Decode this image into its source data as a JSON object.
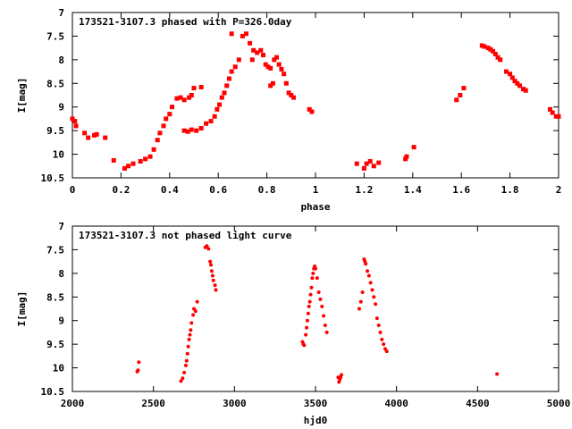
{
  "chart_data": [
    {
      "type": "scatter",
      "title": "173521-3107.3 phased with P=326.0day",
      "xlabel": "phase",
      "ylabel": "I[mag]",
      "xlim": [
        0,
        2
      ],
      "ylim": [
        10.5,
        7
      ],
      "y_inverted": true,
      "grid": false,
      "xticks": [
        0,
        0.2,
        0.4,
        0.6,
        0.8,
        1,
        1.2,
        1.4,
        1.6,
        1.8,
        2
      ],
      "xtick_labels": [
        "0",
        "0.2",
        "0.4",
        "0.6",
        "0.8",
        "1",
        "1.2",
        "1.4",
        "1.6",
        "1.8",
        "2"
      ],
      "yticks": [
        7,
        7.5,
        8,
        8.5,
        9,
        9.5,
        10,
        10.5
      ],
      "ytick_labels": [
        "7",
        "7.5",
        "8",
        "8.5",
        "9",
        "9.5",
        "10",
        "10.5"
      ],
      "series": [
        {
          "color": "#ff0000",
          "points": [
            [
              0.0,
              9.25
            ],
            [
              0.01,
              9.3
            ],
            [
              0.015,
              9.4
            ],
            [
              0.05,
              9.55
            ],
            [
              0.065,
              9.65
            ],
            [
              0.09,
              9.6
            ],
            [
              0.1,
              9.58
            ],
            [
              0.135,
              9.65
            ],
            [
              0.17,
              10.13
            ],
            [
              0.215,
              10.3
            ],
            [
              0.23,
              10.25
            ],
            [
              0.25,
              10.2
            ],
            [
              0.28,
              10.15
            ],
            [
              0.3,
              10.1
            ],
            [
              0.32,
              10.05
            ],
            [
              0.335,
              9.9
            ],
            [
              0.35,
              9.7
            ],
            [
              0.36,
              9.55
            ],
            [
              0.375,
              9.4
            ],
            [
              0.385,
              9.25
            ],
            [
              0.4,
              9.15
            ],
            [
              0.41,
              9.0
            ],
            [
              0.43,
              8.82
            ],
            [
              0.445,
              8.8
            ],
            [
              0.46,
              8.85
            ],
            [
              0.48,
              8.8
            ],
            [
              0.49,
              8.75
            ],
            [
              0.5,
              8.6
            ],
            [
              0.53,
              8.58
            ],
            [
              0.46,
              9.5
            ],
            [
              0.475,
              9.52
            ],
            [
              0.49,
              9.48
            ],
            [
              0.51,
              9.5
            ],
            [
              0.53,
              9.45
            ],
            [
              0.55,
              9.35
            ],
            [
              0.57,
              9.3
            ],
            [
              0.585,
              9.2
            ],
            [
              0.595,
              9.05
            ],
            [
              0.605,
              8.95
            ],
            [
              0.615,
              8.8
            ],
            [
              0.625,
              8.7
            ],
            [
              0.635,
              8.55
            ],
            [
              0.645,
              8.4
            ],
            [
              0.655,
              8.25
            ],
            [
              0.67,
              8.15
            ],
            [
              0.685,
              8.0
            ],
            [
              0.655,
              7.45
            ],
            [
              0.7,
              7.5
            ],
            [
              0.715,
              7.45
            ],
            [
              0.73,
              7.65
            ],
            [
              0.745,
              7.8
            ],
            [
              0.76,
              7.85
            ],
            [
              0.775,
              7.8
            ],
            [
              0.785,
              7.9
            ],
            [
              0.795,
              8.1
            ],
            [
              0.805,
              8.15
            ],
            [
              0.815,
              8.18
            ],
            [
              0.83,
              8.0
            ],
            [
              0.84,
              7.95
            ],
            [
              0.85,
              8.1
            ],
            [
              0.86,
              8.2
            ],
            [
              0.87,
              8.3
            ],
            [
              0.88,
              8.5
            ],
            [
              0.89,
              8.7
            ],
            [
              0.9,
              8.75
            ],
            [
              0.91,
              8.8
            ],
            [
              0.815,
              8.55
            ],
            [
              0.825,
              8.5
            ],
            [
              0.74,
              8.0
            ],
            [
              0.975,
              9.05
            ],
            [
              0.985,
              9.1
            ],
            [
              1.17,
              10.2
            ],
            [
              1.2,
              10.3
            ],
            [
              1.21,
              10.2
            ],
            [
              1.225,
              10.15
            ],
            [
              1.24,
              10.25
            ],
            [
              1.26,
              10.18
            ],
            [
              1.37,
              10.1
            ],
            [
              1.375,
              10.05
            ],
            [
              1.405,
              9.85
            ],
            [
              1.58,
              8.85
            ],
            [
              1.595,
              8.75
            ],
            [
              1.61,
              8.6
            ],
            [
              1.685,
              7.7
            ],
            [
              1.695,
              7.72
            ],
            [
              1.71,
              7.75
            ],
            [
              1.72,
              7.78
            ],
            [
              1.73,
              7.82
            ],
            [
              1.74,
              7.88
            ],
            [
              1.75,
              7.95
            ],
            [
              1.76,
              8.0
            ],
            [
              1.785,
              8.25
            ],
            [
              1.8,
              8.3
            ],
            [
              1.81,
              8.38
            ],
            [
              1.82,
              8.45
            ],
            [
              1.83,
              8.5
            ],
            [
              1.84,
              8.55
            ],
            [
              1.855,
              8.62
            ],
            [
              1.865,
              8.65
            ],
            [
              1.965,
              9.05
            ],
            [
              1.975,
              9.12
            ],
            [
              1.99,
              9.2
            ],
            [
              2.0,
              9.2
            ]
          ]
        }
      ]
    },
    {
      "type": "scatter",
      "title": "173521-3107.3 not phased light curve",
      "xlabel": "hjd0",
      "ylabel": "I[mag]",
      "xlim": [
        2000,
        5000
      ],
      "ylim": [
        10.5,
        7
      ],
      "y_inverted": true,
      "grid": false,
      "xticks": [
        2000,
        2500,
        3000,
        3500,
        4000,
        4500,
        5000
      ],
      "xtick_labels": [
        "2000",
        "2500",
        "3000",
        "3500",
        "4000",
        "4500",
        "5000"
      ],
      "yticks": [
        7,
        7.5,
        8,
        8.5,
        9,
        9.5,
        10,
        10.5
      ],
      "ytick_labels": [
        "7",
        "7.5",
        "8",
        "8.5",
        "9",
        "9.5",
        "10",
        "10.5"
      ],
      "series": [
        {
          "color": "#ff0000",
          "points": [
            [
              2400,
              10.08
            ],
            [
              2405,
              10.05
            ],
            [
              2410,
              9.88
            ],
            [
              2670,
              10.28
            ],
            [
              2680,
              10.22
            ],
            [
              2690,
              10.1
            ],
            [
              2700,
              9.95
            ],
            [
              2705,
              9.85
            ],
            [
              2710,
              9.7
            ],
            [
              2715,
              9.55
            ],
            [
              2720,
              9.4
            ],
            [
              2725,
              9.3
            ],
            [
              2730,
              9.2
            ],
            [
              2735,
              9.05
            ],
            [
              2745,
              8.88
            ],
            [
              2750,
              8.75
            ],
            [
              2760,
              8.8
            ],
            [
              2770,
              8.6
            ],
            [
              2820,
              7.45
            ],
            [
              2830,
              7.42
            ],
            [
              2840,
              7.48
            ],
            [
              2850,
              7.75
            ],
            [
              2855,
              7.82
            ],
            [
              2860,
              7.95
            ],
            [
              2865,
              8.05
            ],
            [
              2870,
              8.15
            ],
            [
              2880,
              8.25
            ],
            [
              2885,
              8.35
            ],
            [
              3420,
              9.45
            ],
            [
              3425,
              9.5
            ],
            [
              3430,
              9.52
            ],
            [
              3440,
              9.3
            ],
            [
              3445,
              9.15
            ],
            [
              3450,
              9.0
            ],
            [
              3455,
              8.85
            ],
            [
              3460,
              8.7
            ],
            [
              3465,
              8.6
            ],
            [
              3470,
              8.45
            ],
            [
              3475,
              8.3
            ],
            [
              3480,
              8.1
            ],
            [
              3485,
              8.0
            ],
            [
              3490,
              7.9
            ],
            [
              3495,
              7.85
            ],
            [
              3500,
              7.9
            ],
            [
              3510,
              8.1
            ],
            [
              3520,
              8.4
            ],
            [
              3530,
              8.55
            ],
            [
              3540,
              8.7
            ],
            [
              3550,
              8.9
            ],
            [
              3560,
              9.1
            ],
            [
              3570,
              9.25
            ],
            [
              3640,
              10.2
            ],
            [
              3645,
              10.3
            ],
            [
              3650,
              10.25
            ],
            [
              3655,
              10.2
            ],
            [
              3660,
              10.15
            ],
            [
              3770,
              8.75
            ],
            [
              3780,
              8.6
            ],
            [
              3790,
              8.4
            ],
            [
              3800,
              7.7
            ],
            [
              3805,
              7.75
            ],
            [
              3810,
              7.8
            ],
            [
              3820,
              7.95
            ],
            [
              3830,
              8.05
            ],
            [
              3840,
              8.2
            ],
            [
              3850,
              8.35
            ],
            [
              3860,
              8.5
            ],
            [
              3870,
              8.65
            ],
            [
              3880,
              8.95
            ],
            [
              3890,
              9.1
            ],
            [
              3900,
              9.25
            ],
            [
              3910,
              9.4
            ],
            [
              3920,
              9.5
            ],
            [
              3930,
              9.6
            ],
            [
              3940,
              9.65
            ],
            [
              4620,
              10.13
            ]
          ]
        }
      ]
    }
  ]
}
